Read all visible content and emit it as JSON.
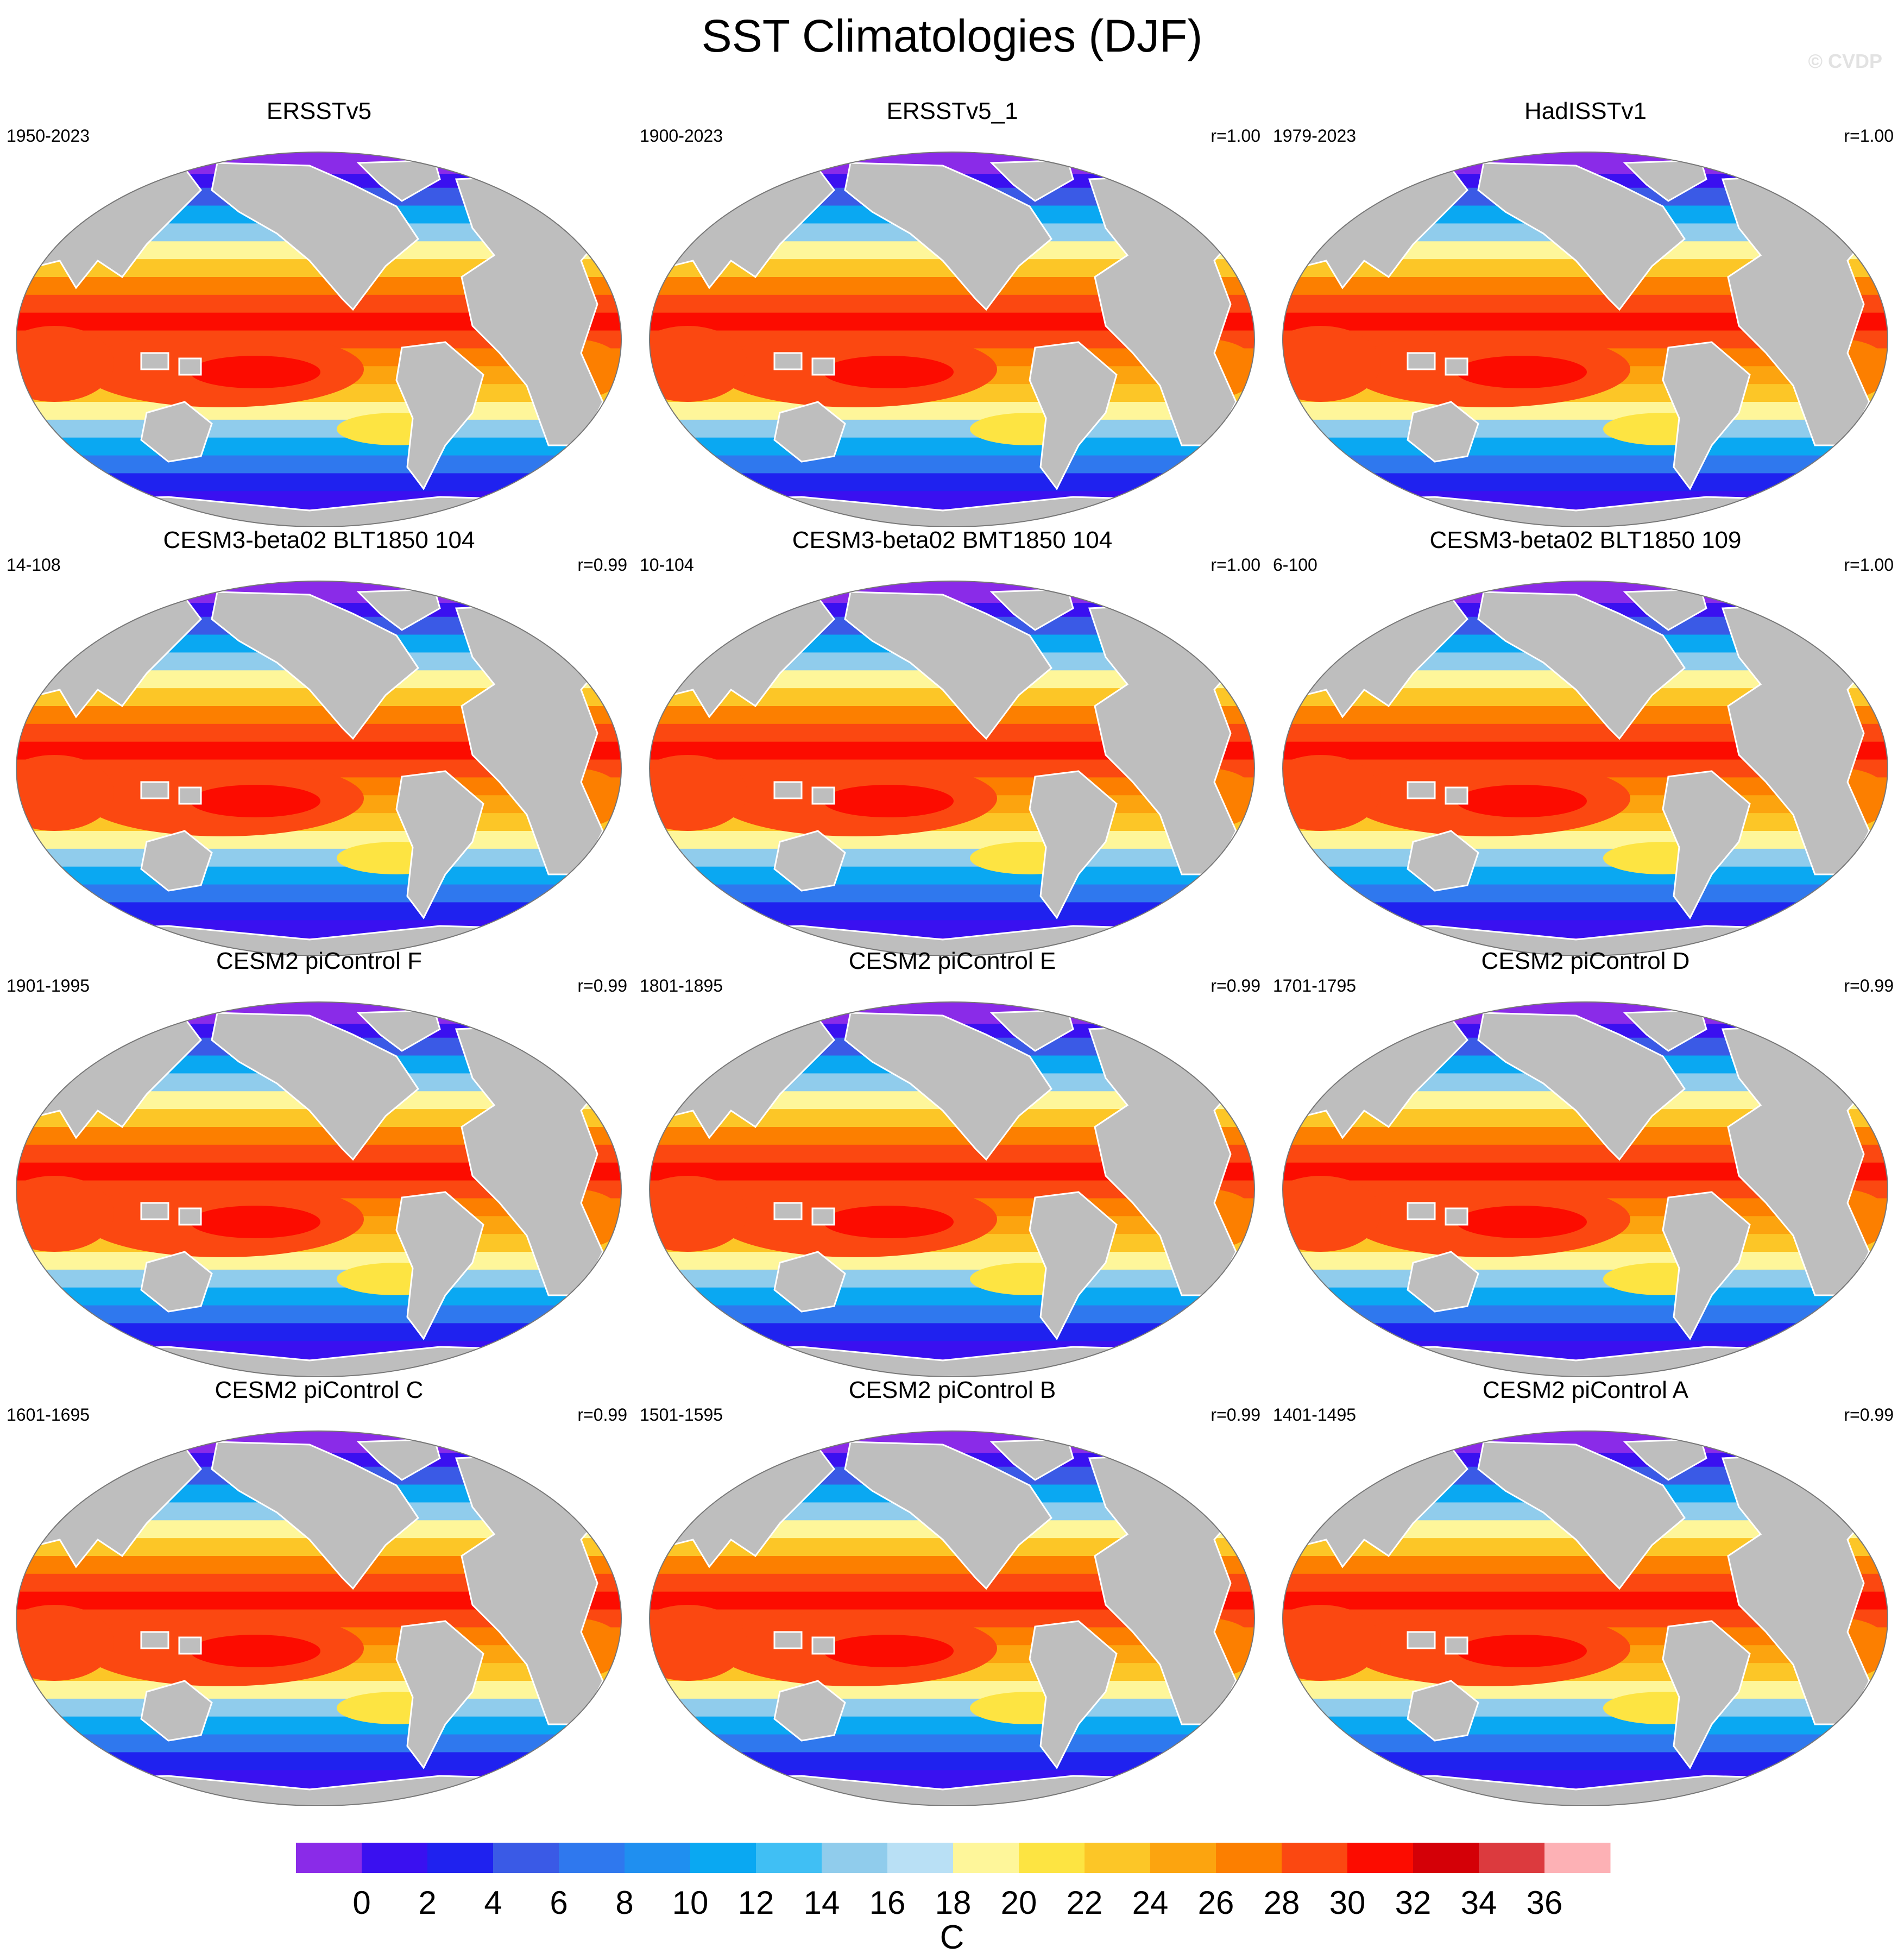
{
  "title": "SST Climatologies (DJF)",
  "watermark": "© CVDP",
  "panels": [
    {
      "title": "ERSSTv5",
      "period": "1950-2023",
      "corr": ""
    },
    {
      "title": "ERSSTv5_1",
      "period": "1900-2023",
      "corr": "r=1.00"
    },
    {
      "title": "HadISSTv1",
      "period": "1979-2023",
      "corr": "r=1.00"
    },
    {
      "title": "CESM3-beta02 BLT1850 104",
      "period": "14-108",
      "corr": "r=0.99"
    },
    {
      "title": "CESM3-beta02 BMT1850 104",
      "period": "10-104",
      "corr": "r=1.00"
    },
    {
      "title": "CESM3-beta02 BLT1850 109",
      "period": "6-100",
      "corr": "r=1.00"
    },
    {
      "title": "CESM2 piControl F",
      "period": "1901-1995",
      "corr": "r=0.99"
    },
    {
      "title": "CESM2 piControl E",
      "period": "1801-1895",
      "corr": "r=0.99"
    },
    {
      "title": "CESM2 piControl D",
      "period": "1701-1795",
      "corr": "r=0.99"
    },
    {
      "title": "CESM2 piControl C",
      "period": "1601-1695",
      "corr": "r=0.99"
    },
    {
      "title": "CESM2 piControl B",
      "period": "1501-1595",
      "corr": "r=0.99"
    },
    {
      "title": "CESM2 piControl A",
      "period": "1401-1495",
      "corr": "r=0.99"
    }
  ],
  "colorbar": {
    "units": "C",
    "tick_labels": [
      "0",
      "2",
      "4",
      "6",
      "8",
      "10",
      "12",
      "14",
      "16",
      "18",
      "20",
      "22",
      "24",
      "26",
      "28",
      "30",
      "32",
      "34",
      "36"
    ],
    "colors": [
      "#8a2be8",
      "#3a10f0",
      "#1f22ef",
      "#3a5ae6",
      "#2f78ee",
      "#1f8ff0",
      "#0aa8f2",
      "#40bff4",
      "#90ccec",
      "#b9e0f5",
      "#fef69a",
      "#fde442",
      "#fcc627",
      "#fca40f",
      "#fc7f00",
      "#fb4811",
      "#fc0c00",
      "#d40007",
      "#dc3a3e",
      "#fdb1b5"
    ]
  },
  "map_colors": {
    "land": "#bebebe",
    "coast": "#ffffff"
  }
}
